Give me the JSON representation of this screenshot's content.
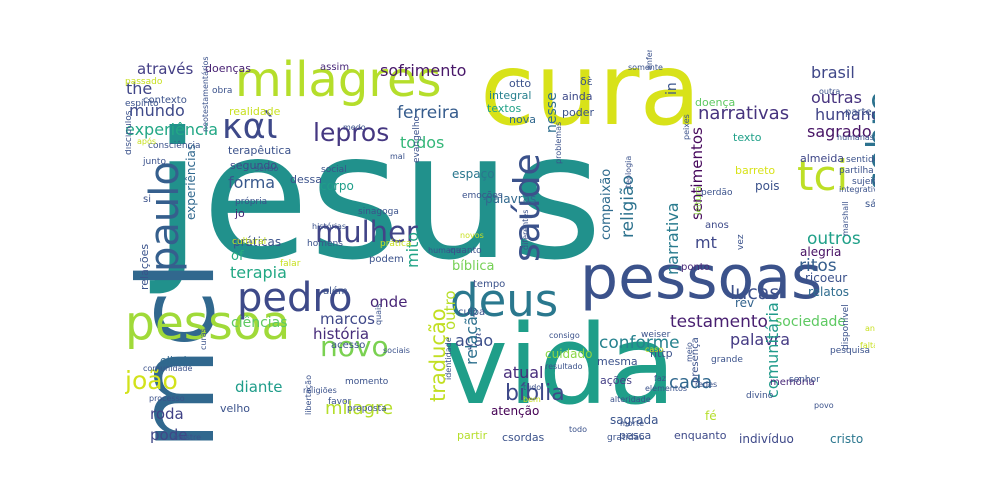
{
  "palette": "viridis",
  "words": [
    {
      "text": "jesus",
      "color": "#21918c",
      "rotate": false
    },
    {
      "text": "cura",
      "color": "#d8e219",
      "rotate": false
    },
    {
      "text": "mcl",
      "color": "#31688e",
      "rotate": true
    },
    {
      "text": "vida",
      "color": "#1f9e89",
      "rotate": false
    },
    {
      "text": "pessoas",
      "color": "#3b528b",
      "rotate": false
    },
    {
      "text": "pessoa",
      "color": "#a0da39",
      "rotate": false
    },
    {
      "text": "milagres",
      "color": "#b5de2b",
      "rotate": false
    },
    {
      "text": "deus",
      "color": "#2a788e",
      "rotate": false
    },
    {
      "text": "pedro",
      "color": "#3e4a89",
      "rotate": false
    },
    {
      "text": "paulo",
      "color": "#355f8d",
      "rotate": true
    },
    {
      "text": "saúde",
      "color": "#3b528b",
      "rotate": true
    },
    {
      "text": "sobre",
      "color": "#2c728e",
      "rotate": true
    },
    {
      "text": "tci",
      "color": "#bddf26",
      "rotate": false
    },
    {
      "text": "καὶ",
      "color": "#3e4989",
      "rotate": false
    },
    {
      "text": "lepros",
      "color": "#453781",
      "rotate": false
    },
    {
      "text": "mulher",
      "color": "#414487",
      "rotate": false
    },
    {
      "text": "novo",
      "color": "#7ad151",
      "rotate": false
    },
    {
      "text": "tradução",
      "color": "#c2df23",
      "rotate": true
    },
    {
      "text": "joão",
      "color": "#d2e21b",
      "rotate": false
    },
    {
      "text": "bíblia",
      "color": "#3e4989",
      "rotate": false
    },
    {
      "text": "milagre",
      "color": "#b5de2b",
      "rotate": false
    },
    {
      "text": "narrativas",
      "color": "#46337e",
      "rotate": false
    },
    {
      "text": "brasil",
      "color": "#3f4788",
      "rotate": false
    },
    {
      "text": "outras",
      "color": "#46327e",
      "rotate": false
    },
    {
      "text": "humano",
      "color": "#414487",
      "rotate": false
    },
    {
      "text": "sagrado",
      "color": "#471365",
      "rotate": false
    },
    {
      "text": "ferreira",
      "color": "#365c8d",
      "rotate": false
    },
    {
      "text": "através",
      "color": "#433e85",
      "rotate": false
    },
    {
      "text": "the",
      "color": "#404688",
      "rotate": false
    },
    {
      "text": "mundo",
      "color": "#3e4989",
      "rotate": false
    },
    {
      "text": "experiência",
      "color": "#22a785",
      "rotate": false
    },
    {
      "text": "sofrimento",
      "color": "#481769",
      "rotate": false
    },
    {
      "text": "todos",
      "color": "#35b779",
      "rotate": false
    },
    {
      "text": "forma",
      "color": "#38588c",
      "rotate": false
    },
    {
      "text": "testamento",
      "color": "#481f70",
      "rotate": false
    },
    {
      "text": "lucas",
      "color": "#3c508b",
      "rotate": false
    },
    {
      "text": "outros",
      "color": "#1fa088",
      "rotate": false
    },
    {
      "text": "ritos",
      "color": "#355e8d",
      "rotate": false
    },
    {
      "text": "conforme",
      "color": "#26828e",
      "rotate": false
    },
    {
      "text": "palavra",
      "color": "#443a83",
      "rotate": false
    },
    {
      "text": "cada",
      "color": "#31688e",
      "rotate": false
    },
    {
      "text": "terapia",
      "color": "#22a884",
      "rotate": false
    },
    {
      "text": "marcos",
      "color": "#3f4889",
      "rotate": false
    },
    {
      "text": "história",
      "color": "#472c7a",
      "rotate": false
    },
    {
      "text": "ação",
      "color": "#3c4f8a",
      "rotate": false
    },
    {
      "text": "atual",
      "color": "#472d7b",
      "rotate": false
    },
    {
      "text": "sociedade",
      "color": "#5ec962",
      "rotate": false
    },
    {
      "text": "comunitária",
      "color": "#1f9a8a",
      "rotate": true
    },
    {
      "text": "compaixão",
      "color": "#2f6b8e",
      "rotate": true
    },
    {
      "text": "religião",
      "color": "#2c728e",
      "rotate": true
    },
    {
      "text": "narrativa",
      "color": "#297b8e",
      "rotate": true
    },
    {
      "text": "sentimentos",
      "color": "#46085c",
      "rotate": true
    },
    {
      "text": "nesse",
      "color": "#2e6e8e",
      "rotate": true
    },
    {
      "text": "in",
      "color": "#3a548c",
      "rotate": true
    },
    {
      "text": "mito",
      "color": "#20a486",
      "rotate": true
    },
    {
      "text": "outro",
      "color": "#b8de29",
      "rotate": true
    },
    {
      "text": "relação",
      "color": "#2d708e",
      "rotate": true
    },
    {
      "text": "diante",
      "color": "#1e9c89",
      "rotate": false
    },
    {
      "text": "roda",
      "color": "#414287",
      "rotate": false
    },
    {
      "text": "pode",
      "color": "#3f4788",
      "rotate": false
    },
    {
      "text": "ciências",
      "color": "#5ec962",
      "rotate": false
    },
    {
      "text": "práticas",
      "color": "#3b528b",
      "rotate": false
    },
    {
      "text": "relações",
      "color": "#3a538b",
      "rotate": true
    },
    {
      "text": "experiências",
      "color": "#31688e",
      "rotate": true
    },
    {
      "text": "of",
      "color": "#25ac82",
      "rotate": false
    },
    {
      "text": "onde",
      "color": "#482576",
      "rotate": false
    },
    {
      "text": "bíblica",
      "color": "#75d054",
      "rotate": false
    },
    {
      "text": "atenção",
      "color": "#440154",
      "rotate": false
    },
    {
      "text": "sagrada",
      "color": "#3a548c",
      "rotate": false
    },
    {
      "text": "cuidado",
      "color": "#8bd646",
      "rotate": false
    },
    {
      "text": "doenças",
      "color": "#482173",
      "rotate": false
    },
    {
      "text": "assim",
      "color": "#482878",
      "rotate": false
    },
    {
      "text": "corpo",
      "color": "#1f9e89",
      "rotate": false
    },
    {
      "text": "palavras",
      "color": "#31688e",
      "rotate": false
    },
    {
      "text": "espaço",
      "color": "#2a778e",
      "rotate": false
    },
    {
      "text": "jo",
      "color": "#482475",
      "rotate": false
    },
    {
      "text": "segundo",
      "color": "#3e4a89",
      "rotate": false
    },
    {
      "text": "terapêutica",
      "color": "#3b528b",
      "rotate": false
    },
    {
      "text": "dessa",
      "color": "#3b528b",
      "rotate": false
    },
    {
      "text": "mt",
      "color": "#3f4889",
      "rotate": false
    },
    {
      "text": "rev",
      "color": "#33638d",
      "rotate": false
    },
    {
      "text": "alegria",
      "color": "#471063",
      "rotate": false
    },
    {
      "text": "relatos",
      "color": "#2f6c8e",
      "rotate": false
    },
    {
      "text": "pois",
      "color": "#3b528b",
      "rotate": false
    },
    {
      "text": "barreto",
      "color": "#d8e219",
      "rotate": false
    },
    {
      "text": "almeida",
      "color": "#3f4788",
      "rotate": false
    },
    {
      "text": "sábado",
      "color": "#3a548c",
      "rotate": false
    },
    {
      "text": "ricoeur",
      "color": "#3b528b",
      "rotate": false
    },
    {
      "text": "integral",
      "color": "#27808e",
      "rotate": false
    },
    {
      "text": "textos",
      "color": "#1fa187",
      "rotate": false
    },
    {
      "text": "nova",
      "color": "#31688e",
      "rotate": false
    },
    {
      "text": "ainda",
      "color": "#3e4a89",
      "rotate": false
    },
    {
      "text": "poder",
      "color": "#3b528b",
      "rotate": false
    },
    {
      "text": "otto",
      "color": "#3b528b",
      "rotate": false
    },
    {
      "text": "δὲ",
      "color": "#3b528b",
      "rotate": false
    },
    {
      "text": "doença",
      "color": "#5ec962",
      "rotate": false
    },
    {
      "text": "texto",
      "color": "#1fa088",
      "rotate": false
    },
    {
      "text": "http",
      "color": "#3b528b",
      "rotate": false
    },
    {
      "text": "indivíduo",
      "color": "#3e4989",
      "rotate": false
    },
    {
      "text": "cristo",
      "color": "#2a768e",
      "rotate": false
    },
    {
      "text": "enquanto",
      "color": "#3e4a89",
      "rotate": false
    },
    {
      "text": "pesca",
      "color": "#3b528b",
      "rotate": false
    },
    {
      "text": "fé",
      "color": "#b5de2b",
      "rotate": false
    },
    {
      "text": "mesma",
      "color": "#3b528b",
      "rotate": false
    },
    {
      "text": "ações",
      "color": "#433e85",
      "rotate": false
    },
    {
      "text": "partir",
      "color": "#b5de2b",
      "rotate": false
    },
    {
      "text": "csordas",
      "color": "#3b528b",
      "rotate": false
    },
    {
      "text": "memória",
      "color": "#482878",
      "rotate": false
    },
    {
      "text": "velho",
      "color": "#3b528b",
      "rotate": false
    },
    {
      "text": "eliade",
      "color": "#31688e",
      "rotate": false
    },
    {
      "text": "anos",
      "color": "#3e4a89",
      "rotate": false
    },
    {
      "text": "ponto",
      "color": "#482878",
      "rotate": false
    },
    {
      "text": "leitura",
      "color": "#8fd744",
      "rotate": true
    },
    {
      "text": "podem",
      "color": "#3b528b",
      "rotate": false
    },
    {
      "text": "culpa",
      "color": "#3b528b",
      "rotate": false
    },
    {
      "text": "tempo",
      "color": "#3b528b",
      "rotate": false
    },
    {
      "text": "acesso",
      "color": "#3b528b",
      "rotate": false
    },
    {
      "text": "além",
      "color": "#3b528b",
      "rotate": false
    },
    {
      "text": "homens",
      "color": "#3b528b",
      "rotate": false
    },
    {
      "text": "prática",
      "color": "#c8e020",
      "rotate": false
    },
    {
      "text": "quanto",
      "color": "#3b528b",
      "rotate": false
    },
    {
      "text": "novos",
      "color": "#c8e020",
      "rotate": false
    },
    {
      "text": "diferentes",
      "color": "#3b528b",
      "rotate": true
    },
    {
      "text": "evangelho",
      "color": "#3b528b",
      "rotate": true
    },
    {
      "text": "sinagoga",
      "color": "#3b528b",
      "rotate": false
    },
    {
      "text": "emoções",
      "color": "#3b528b",
      "rotate": false
    },
    {
      "text": "social",
      "color": "#3b528b",
      "rotate": false
    },
    {
      "text": "senso",
      "color": "#3b528b",
      "rotate": false
    },
    {
      "text": "própria",
      "color": "#3b528b",
      "rotate": false
    },
    {
      "text": "mal",
      "color": "#3b528b",
      "rotate": false
    },
    {
      "text": "medo",
      "color": "#3b528b",
      "rotate": false
    },
    {
      "text": "realidade",
      "color": "#c8e020",
      "rotate": false
    },
    {
      "text": "contexto",
      "color": "#3b528b",
      "rotate": false
    },
    {
      "text": "consciência",
      "color": "#3b528b",
      "rotate": false
    },
    {
      "text": "junto",
      "color": "#3b528b",
      "rotate": false
    },
    {
      "text": "espírito",
      "color": "#3b528b",
      "rotate": false
    },
    {
      "text": "passado",
      "color": "#c8e020",
      "rotate": false
    },
    {
      "text": "obra",
      "color": "#3b528b",
      "rotate": false
    },
    {
      "text": "após",
      "color": "#c8e020",
      "rotate": false
    },
    {
      "text": "discípulos",
      "color": "#3b528b",
      "rotate": true
    },
    {
      "text": "neotestamentários",
      "color": "#3b528b",
      "rotate": true
    },
    {
      "text": "cultural",
      "color": "#c8e020",
      "rotate": false
    },
    {
      "text": "si",
      "color": "#3b528b",
      "rotate": false
    },
    {
      "text": "falar",
      "color": "#c8e020",
      "rotate": false
    },
    {
      "text": "histórias",
      "color": "#3b528b",
      "rotate": false
    },
    {
      "text": "humana",
      "color": "#3b528b",
      "rotate": false
    },
    {
      "text": "comunidade",
      "color": "#3b528b",
      "rotate": false
    },
    {
      "text": "processo",
      "color": "#3b528b",
      "rotate": false
    },
    {
      "text": "mestre",
      "color": "#3b528b",
      "rotate": false
    },
    {
      "text": "curas",
      "color": "#3b528b",
      "rotate": true
    },
    {
      "text": "religiões",
      "color": "#3b528b",
      "rotate": false
    },
    {
      "text": "sociais",
      "color": "#3b528b",
      "rotate": false
    },
    {
      "text": "momento",
      "color": "#3b528b",
      "rotate": false
    },
    {
      "text": "favor",
      "color": "#3b528b",
      "rotate": false
    },
    {
      "text": "proposta",
      "color": "#3b528b",
      "rotate": false
    },
    {
      "text": "libertação",
      "color": "#3b528b",
      "rotate": true
    },
    {
      "text": "quais",
      "color": "#3b528b",
      "rotate": true
    },
    {
      "text": "identidade",
      "color": "#3b528b",
      "rotate": true
    },
    {
      "text": "resultado",
      "color": "#3b528b",
      "rotate": false
    },
    {
      "text": "consigo",
      "color": "#3b528b",
      "rotate": false
    },
    {
      "text": "tudo",
      "color": "#3b528b",
      "rotate": false
    },
    {
      "text": "bem",
      "color": "#c8e020",
      "rotate": false
    },
    {
      "text": "todo",
      "color": "#3b528b",
      "rotate": false
    },
    {
      "text": "gratidão",
      "color": "#3b528b",
      "rotate": false
    },
    {
      "text": "morte",
      "color": "#3b528b",
      "rotate": false
    },
    {
      "text": "alteridade",
      "color": "#3b528b",
      "rotate": false
    },
    {
      "text": "elementos",
      "color": "#3b528b",
      "rotate": false
    },
    {
      "text": "faz",
      "color": "#3b528b",
      "rotate": false
    },
    {
      "text": "caso",
      "color": "#c8e020",
      "rotate": false
    },
    {
      "text": "weiser",
      "color": "#3b528b",
      "rotate": false
    },
    {
      "text": "redes",
      "color": "#3b528b",
      "rotate": false
    },
    {
      "text": "meio",
      "color": "#3b528b",
      "rotate": true
    },
    {
      "text": "presença",
      "color": "#3b528b",
      "rotate": true
    },
    {
      "text": "grande",
      "color": "#3b528b",
      "rotate": false
    },
    {
      "text": "divino",
      "color": "#3b528b",
      "rotate": false
    },
    {
      "text": "senhor",
      "color": "#3b528b",
      "rotate": false
    },
    {
      "text": "povo",
      "color": "#3b528b",
      "rotate": false
    },
    {
      "text": "disponível",
      "color": "#3b528b",
      "rotate": true
    },
    {
      "text": "falta",
      "color": "#c8e020",
      "rotate": false
    },
    {
      "text": "pesquisa",
      "color": "#3b528b",
      "rotate": false
    },
    {
      "text": "análise",
      "color": "#c8e020",
      "rotate": false
    },
    {
      "text": "marshall",
      "color": "#3b528b",
      "rotate": true
    },
    {
      "text": "sujeito",
      "color": "#3b528b",
      "rotate": false
    },
    {
      "text": "vez",
      "color": "#3b528b",
      "rotate": true
    },
    {
      "text": "sentido",
      "color": "#3b528b",
      "rotate": false
    },
    {
      "text": "partilha",
      "color": "#3b528b",
      "rotate": false
    },
    {
      "text": "humanas",
      "color": "#3b528b",
      "rotate": false
    },
    {
      "text": "integrativa",
      "color": "#3b528b",
      "rotate": false
    },
    {
      "text": "parte",
      "color": "#3b528b",
      "rotate": false
    },
    {
      "text": "outra",
      "color": "#3b528b",
      "rotate": false
    },
    {
      "text": "somente",
      "color": "#3b528b",
      "rotate": false
    },
    {
      "text": "enfermidade",
      "color": "#3b528b",
      "rotate": true
    },
    {
      "text": "peixes",
      "color": "#3b528b",
      "rotate": true
    },
    {
      "text": "perdão",
      "color": "#3b528b",
      "rotate": false
    },
    {
      "text": "teologia",
      "color": "#3b528b",
      "rotate": true
    },
    {
      "text": "problemas",
      "color": "#3b528b",
      "rotate": true
    },
    {
      "text": "cor",
      "color": "#3b528b",
      "rotate": false
    }
  ]
}
